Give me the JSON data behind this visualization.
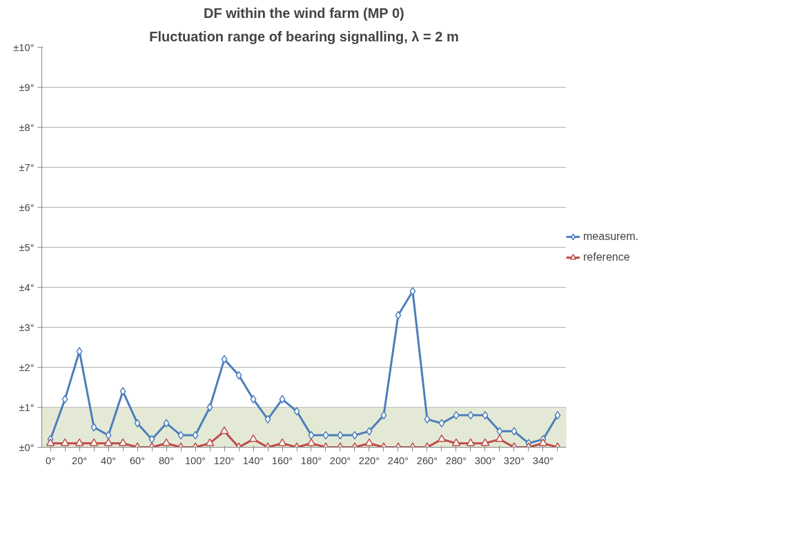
{
  "chart_data": {
    "type": "line",
    "title": "DF within the wind farm (MP 0)",
    "subtitle": "Fluctuation range of bearing signalling, λ = 2 m",
    "categories": [
      "0°",
      null,
      "20°",
      null,
      "40°",
      null,
      "60°",
      null,
      "80°",
      null,
      "100°",
      null,
      "120°",
      null,
      "140°",
      null,
      "160°",
      null,
      "180°",
      null,
      "200°",
      null,
      "220°",
      null,
      "240°",
      null,
      "260°",
      null,
      "280°",
      null,
      "300°",
      null,
      "320°",
      null,
      "340°",
      null
    ],
    "series": [
      {
        "name": "measurem.",
        "color": "#4a7ebb",
        "marker": "diamond",
        "values": [
          0.2,
          1.2,
          2.4,
          0.5,
          0.3,
          1.4,
          0.6,
          0.2,
          0.6,
          0.3,
          0.3,
          1.0,
          2.2,
          1.8,
          1.2,
          0.7,
          1.2,
          0.9,
          0.3,
          0.3,
          0.3,
          0.3,
          0.4,
          0.8,
          3.3,
          3.9,
          0.7,
          0.6,
          0.8,
          0.8,
          0.8,
          0.4,
          0.4,
          0.1,
          0.2,
          0.8
        ]
      },
      {
        "name": "reference",
        "color": "#be4b48",
        "marker": "triangle",
        "values": [
          0.1,
          0.1,
          0.1,
          0.1,
          0.1,
          0.1,
          0,
          0,
          0.1,
          0,
          0,
          0.1,
          0.4,
          0,
          0.2,
          0,
          0.1,
          0,
          0.1,
          0,
          0,
          0,
          0.1,
          0,
          0,
          0,
          0,
          0.2,
          0.1,
          0.1,
          0.1,
          0.2,
          0,
          0,
          0.1,
          0
        ]
      }
    ],
    "ylim": [
      0,
      10
    ],
    "yticks": [
      {
        "value": 0,
        "label": "±0°"
      },
      {
        "value": 1,
        "label": "±1°"
      },
      {
        "value": 2,
        "label": "±2°"
      },
      {
        "value": 3,
        "label": "±3°"
      },
      {
        "value": 4,
        "label": "±4°"
      },
      {
        "value": 5,
        "label": "±5°"
      },
      {
        "value": 6,
        "label": "±6°"
      },
      {
        "value": 7,
        "label": "±7°"
      },
      {
        "value": 8,
        "label": "±8°"
      },
      {
        "value": 9,
        "label": "±9°"
      },
      {
        "value": 10,
        "label": "±10°"
      }
    ],
    "bands": [
      {
        "axis": "y",
        "from": 0,
        "to": 1,
        "color": "#e4e9d6"
      }
    ],
    "grid": "y",
    "legend": "right",
    "line_style": "solid"
  }
}
